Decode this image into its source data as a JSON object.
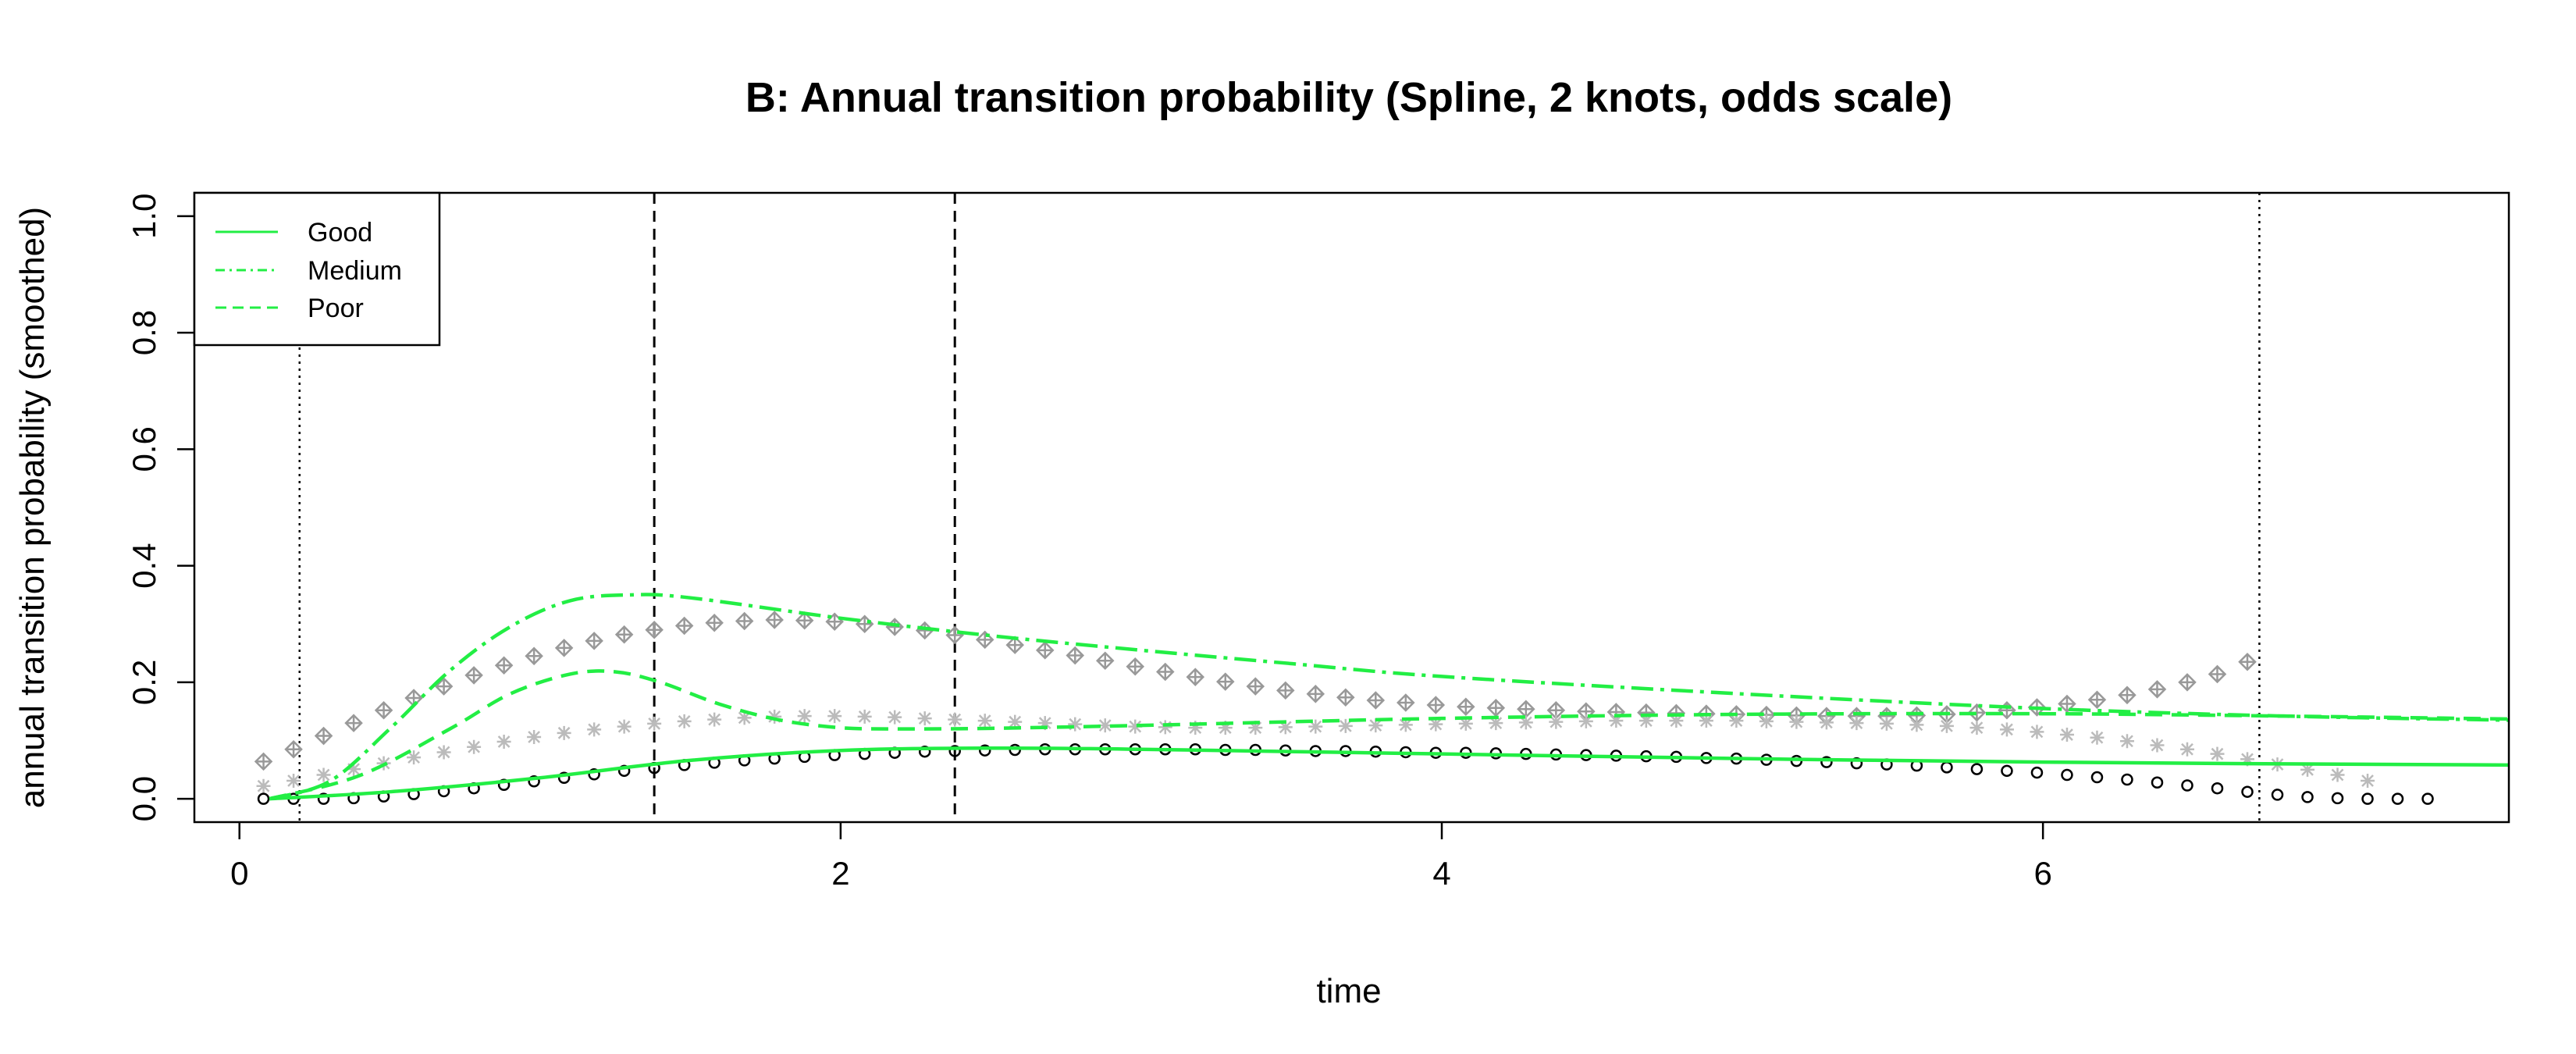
{
  "chart_data": {
    "type": "line",
    "title": "B: Annual transition probability (Spline, 2 knots, odds scale)",
    "xlabel": "time",
    "ylabel": "annual transition probability (smoothed)",
    "xlim": [
      -0.15,
      7.55
    ],
    "ylim": [
      -0.04,
      1.04
    ],
    "x_ticks": [
      0,
      2,
      4,
      6
    ],
    "y_ticks": [
      0.0,
      0.2,
      0.4,
      0.6,
      0.8,
      1.0
    ],
    "x_tick_labels": [
      "0",
      "2",
      "4",
      "6"
    ],
    "y_tick_labels": [
      "0.0",
      "0.2",
      "0.4",
      "0.6",
      "0.8",
      "1.0"
    ],
    "grid": false,
    "legend_position": "top-left",
    "legend": [
      {
        "label": "Good",
        "style": "solid"
      },
      {
        "label": "Medium",
        "style": "dashdot"
      },
      {
        "label": "Poor",
        "style": "dashed"
      }
    ],
    "colors": {
      "curve": "#22ee44",
      "diamond_points": "#999999",
      "star_points": "#bbbbbb",
      "circle_points": "#000000"
    },
    "knots_dashed": [
      1.38,
      2.38
    ],
    "boundaries_dotted": [
      0.2,
      6.72
    ],
    "curves": [
      {
        "name": "Good",
        "style": "solid",
        "x": [
          0.1,
          0.5,
          1.0,
          1.5,
          2.0,
          2.5,
          3.0,
          4.0,
          5.0,
          6.0,
          6.8,
          7.55
        ],
        "y": [
          0.0,
          0.012,
          0.036,
          0.066,
          0.083,
          0.087,
          0.085,
          0.077,
          0.069,
          0.063,
          0.06,
          0.058
        ]
      },
      {
        "name": "Medium",
        "style": "dashdot",
        "x": [
          0.1,
          0.3,
          0.5,
          0.7,
          0.9,
          1.1,
          1.3,
          1.5,
          2.0,
          2.5,
          3.0,
          3.5,
          4.0,
          5.0,
          6.0,
          6.8,
          7.55
        ],
        "y": [
          0.0,
          0.03,
          0.12,
          0.22,
          0.295,
          0.34,
          0.35,
          0.345,
          0.31,
          0.28,
          0.255,
          0.232,
          0.21,
          0.18,
          0.155,
          0.142,
          0.135
        ]
      },
      {
        "name": "Poor",
        "style": "dashed",
        "x": [
          0.1,
          0.4,
          0.7,
          0.9,
          1.1,
          1.25,
          1.4,
          1.6,
          1.8,
          2.0,
          2.2,
          2.5,
          3.0,
          4.0,
          5.0,
          6.0,
          6.8,
          7.55
        ],
        "y": [
          0.0,
          0.04,
          0.12,
          0.18,
          0.214,
          0.218,
          0.2,
          0.162,
          0.135,
          0.122,
          0.12,
          0.121,
          0.126,
          0.138,
          0.145,
          0.146,
          0.142,
          0.137
        ]
      }
    ],
    "point_series": [
      {
        "marker": "diamond-plus",
        "x_start": 0.08,
        "x_step": 0.1,
        "count": 67,
        "y": [
          0.064,
          0.085,
          0.108,
          0.13,
          0.152,
          0.173,
          0.193,
          0.212,
          0.229,
          0.245,
          0.259,
          0.271,
          0.282,
          0.29,
          0.297,
          0.302,
          0.305,
          0.307,
          0.306,
          0.304,
          0.3,
          0.295,
          0.289,
          0.281,
          0.273,
          0.264,
          0.255,
          0.246,
          0.237,
          0.227,
          0.218,
          0.209,
          0.201,
          0.193,
          0.186,
          0.18,
          0.174,
          0.169,
          0.165,
          0.161,
          0.158,
          0.156,
          0.154,
          0.152,
          0.15,
          0.149,
          0.148,
          0.147,
          0.146,
          0.145,
          0.144,
          0.143,
          0.142,
          0.142,
          0.142,
          0.143,
          0.145,
          0.148,
          0.152,
          0.157,
          0.163,
          0.17,
          0.178,
          0.188,
          0.2,
          0.214,
          0.235
        ]
      },
      {
        "marker": "star",
        "x_start": 0.08,
        "x_step": 0.1,
        "count": 71,
        "y": [
          0.022,
          0.031,
          0.041,
          0.051,
          0.061,
          0.071,
          0.08,
          0.089,
          0.098,
          0.106,
          0.113,
          0.119,
          0.124,
          0.129,
          0.133,
          0.136,
          0.139,
          0.141,
          0.142,
          0.142,
          0.141,
          0.14,
          0.138,
          0.136,
          0.134,
          0.132,
          0.13,
          0.128,
          0.126,
          0.124,
          0.123,
          0.122,
          0.122,
          0.122,
          0.123,
          0.124,
          0.125,
          0.126,
          0.127,
          0.128,
          0.129,
          0.13,
          0.131,
          0.132,
          0.133,
          0.134,
          0.134,
          0.134,
          0.134,
          0.134,
          0.133,
          0.132,
          0.131,
          0.13,
          0.129,
          0.127,
          0.125,
          0.122,
          0.119,
          0.115,
          0.11,
          0.105,
          0.099,
          0.092,
          0.085,
          0.077,
          0.068,
          0.059,
          0.05,
          0.041,
          0.031
        ]
      },
      {
        "marker": "circle",
        "x_start": 0.08,
        "x_step": 0.1,
        "count": 73,
        "y": [
          0.0,
          0.0,
          0.0,
          0.001,
          0.004,
          0.008,
          0.013,
          0.018,
          0.024,
          0.03,
          0.036,
          0.042,
          0.048,
          0.053,
          0.058,
          0.062,
          0.066,
          0.069,
          0.072,
          0.075,
          0.077,
          0.079,
          0.081,
          0.082,
          0.083,
          0.084,
          0.085,
          0.085,
          0.085,
          0.085,
          0.085,
          0.085,
          0.084,
          0.084,
          0.083,
          0.082,
          0.082,
          0.081,
          0.08,
          0.079,
          0.079,
          0.078,
          0.077,
          0.076,
          0.075,
          0.074,
          0.073,
          0.072,
          0.07,
          0.069,
          0.067,
          0.065,
          0.063,
          0.061,
          0.059,
          0.057,
          0.054,
          0.051,
          0.048,
          0.045,
          0.041,
          0.037,
          0.033,
          0.028,
          0.023,
          0.018,
          0.012,
          0.007,
          0.003,
          0.001,
          0.0,
          0.0,
          0.0
        ]
      }
    ]
  }
}
